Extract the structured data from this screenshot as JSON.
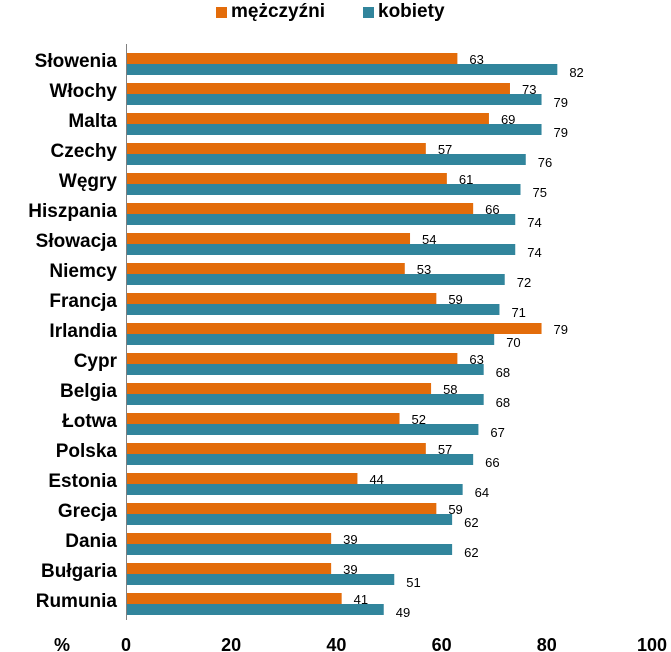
{
  "colors": {
    "men": "#E36C0A",
    "women": "#31859C",
    "axis": "#808080"
  },
  "legend": {
    "men_label": "mężczyźni",
    "women_label": "kobiety"
  },
  "chart_data": {
    "type": "bar",
    "orientation": "horizontal",
    "title": "",
    "xlabel": "%",
    "ylabel": "",
    "xlim": [
      0,
      100
    ],
    "xticks": [
      0,
      20,
      40,
      60,
      80,
      100
    ],
    "grid": false,
    "legend_position": "top",
    "categories": [
      "Słowenia",
      "Włochy",
      "Malta",
      "Czechy",
      "Węgry",
      "Hiszpania",
      "Słowacja",
      "Niemcy",
      "Francja",
      "Irlandia",
      "Cypr",
      "Belgia",
      "Łotwa",
      "Polska",
      "Estonia",
      "Grecja",
      "Dania",
      "Bułgaria",
      "Rumunia"
    ],
    "series": [
      {
        "name": "mężczyźni",
        "values": [
          63,
          73,
          69,
          57,
          61,
          66,
          54,
          53,
          59,
          79,
          63,
          58,
          52,
          57,
          44,
          59,
          39,
          39,
          41
        ]
      },
      {
        "name": "kobiety",
        "values": [
          82,
          79,
          79,
          76,
          75,
          74,
          74,
          72,
          71,
          70,
          68,
          68,
          67,
          66,
          64,
          62,
          62,
          51,
          49
        ]
      }
    ]
  }
}
